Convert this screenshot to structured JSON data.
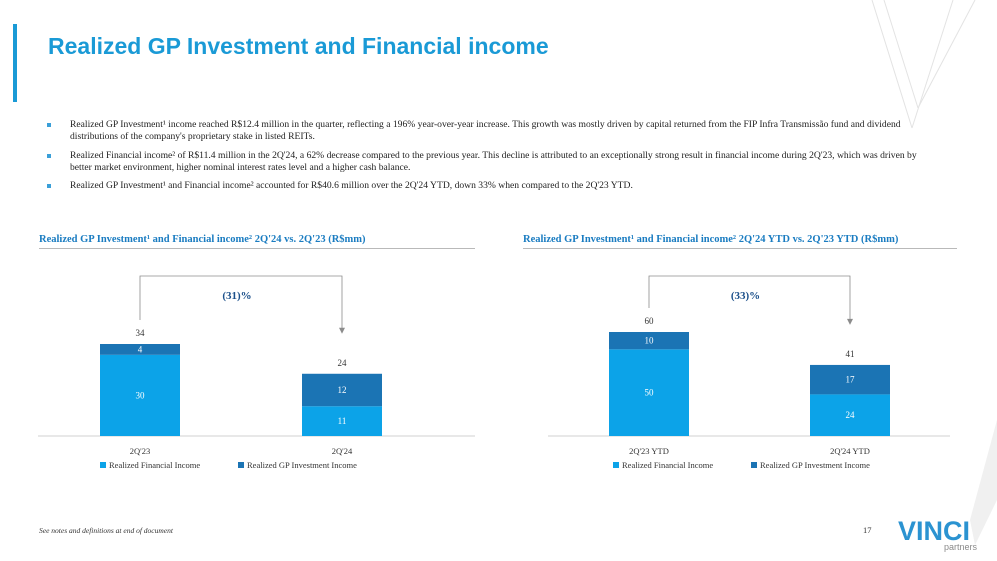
{
  "page": {
    "title": "Realized GP Investment and Financial income",
    "bullets": [
      "Realized GP Investment¹ income reached R$12.4 million in the quarter, reflecting a 196% year-over-year increase. This growth was mostly driven by capital returned from the FIP Infra Transmissão fund and dividend distributions of the company's proprietary stake in listed REITs.",
      "Realized Financial income² of R$11.4 million in the 2Q'24, a 62% decrease compared to the previous year. This decline is attributed to an exceptionally strong result in financial income during 2Q'23, which was driven by better market environment, higher nominal interest rates level and a higher cash balance.",
      "Realized GP Investment¹ and Financial income² accounted for R$40.6 million over the 2Q'24 YTD, down 33% when compared to the 2Q'23 YTD."
    ],
    "footnote": "See notes and definitions at end of document",
    "page_number": "17",
    "logo": {
      "name": "VINCI",
      "sub": "partners"
    }
  },
  "colors": {
    "accent": "#1a9ad6",
    "financial": "#0ca3e8",
    "gp": "#1b74b4",
    "axis": "#d0d0d0",
    "bracket": "#8c8c8c"
  },
  "chart_data": [
    {
      "type": "bar",
      "stacked": true,
      "title": "Realized GP Investment¹ and Financial income² 2Q'24 vs. 2Q'23 (R$mm)",
      "categories": [
        "2Q'23",
        "2Q'24"
      ],
      "series": [
        {
          "name": "Realized Financial Income",
          "values": [
            30,
            11
          ],
          "labels": [
            "30",
            "11"
          ]
        },
        {
          "name": "Realized GP Investment Income",
          "values": [
            4,
            12
          ],
          "labels": [
            "4",
            "12"
          ]
        }
      ],
      "totals": [
        34,
        24
      ],
      "total_labels": [
        "34",
        "24"
      ],
      "change_label": "(31)%",
      "legend": "bottom"
    },
    {
      "type": "bar",
      "stacked": true,
      "title": "Realized GP Investment¹ and Financial income² 2Q'24 YTD vs. 2Q'23 YTD (R$mm)",
      "categories": [
        "2Q'23 YTD",
        "2Q'24 YTD"
      ],
      "series": [
        {
          "name": "Realized Financial Income",
          "values": [
            50,
            24
          ],
          "labels": [
            "50",
            "24"
          ]
        },
        {
          "name": "Realized GP Investment Income",
          "values": [
            10,
            17
          ],
          "labels": [
            "10",
            "17"
          ]
        }
      ],
      "totals": [
        60,
        41
      ],
      "total_labels": [
        "60",
        "41"
      ],
      "change_label": "(33)%",
      "legend": "bottom"
    }
  ]
}
